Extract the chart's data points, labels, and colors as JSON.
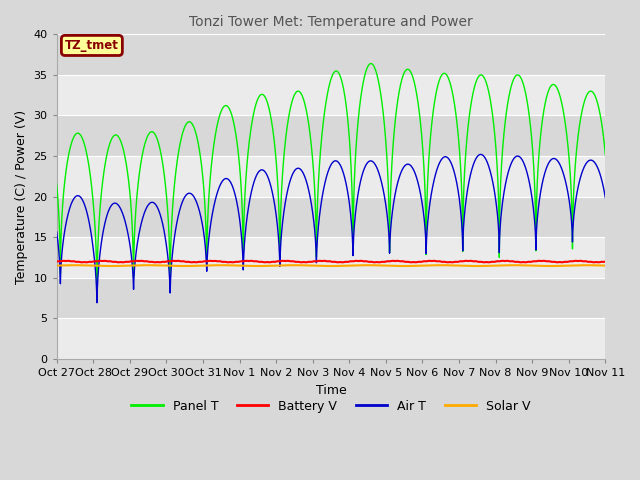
{
  "title": "Tonzi Tower Met: Temperature and Power",
  "xlabel": "Time",
  "ylabel": "Temperature (C) / Power (V)",
  "ylim": [
    0,
    40
  ],
  "yticks": [
    0,
    5,
    10,
    15,
    20,
    25,
    30,
    35,
    40
  ],
  "bg_color": "#d8d8d8",
  "plot_bg_color": "#d8d8d8",
  "grid_color": "#ffffff",
  "panel_t_color": "#00ee00",
  "battery_v_color": "#ff0000",
  "air_t_color": "#0000cc",
  "solar_v_color": "#ffaa00",
  "annotation_text": "TZ_tmet",
  "annotation_bg": "#ffff99",
  "annotation_border": "#880000",
  "legend_labels": [
    "Panel T",
    "Battery V",
    "Air T",
    "Solar V"
  ],
  "n_days": 15,
  "x_tick_labels": [
    "Oct 27",
    "Oct 28",
    "Oct 29",
    "Oct 30",
    "Oct 31",
    "Nov 1",
    "Nov 2",
    "Nov 3",
    "Nov 4",
    "Nov 5",
    "Nov 6",
    "Nov 7",
    "Nov 8",
    "Nov 9",
    "Nov 10",
    "Nov 11"
  ],
  "panel_t_peaks": [
    29,
    27,
    28,
    28,
    30,
    32,
    33,
    33,
    37,
    36,
    35.5,
    35,
    35,
    35,
    33
  ],
  "panel_t_starts": [
    17,
    15,
    15,
    15,
    14,
    13,
    13,
    13,
    13,
    13,
    13,
    13,
    13,
    13,
    13
  ],
  "panel_t_troughs": [
    9,
    6,
    8,
    7,
    9,
    10,
    10,
    10,
    11,
    11,
    11,
    12,
    12,
    12,
    12
  ],
  "air_t_peaks": [
    21,
    19.5,
    19,
    19.5,
    21,
    23,
    23.5,
    23.5,
    25,
    24,
    24,
    25.5,
    25,
    25,
    24.5
  ],
  "air_t_troughs": [
    9,
    6,
    8,
    7,
    10,
    10,
    10.5,
    11,
    12,
    12.5,
    12.5,
    13,
    13,
    13,
    14
  ],
  "battery_v_level": 12.0,
  "solar_v_level": 11.5,
  "figsize": [
    6.4,
    4.8
  ],
  "dpi": 100
}
